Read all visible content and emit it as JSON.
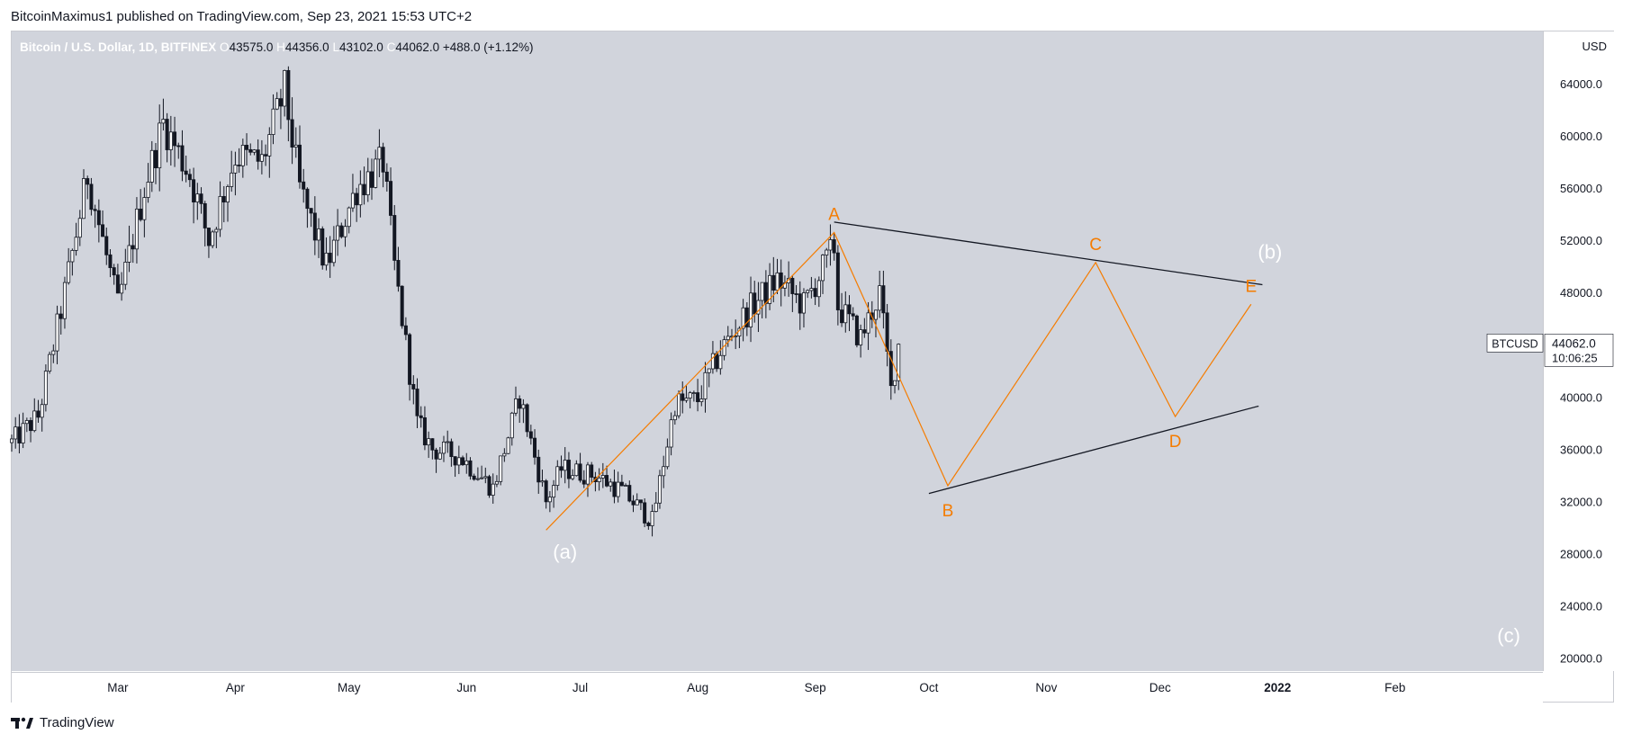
{
  "header": {
    "published_line": "BitcoinMaximus1 published on TradingView.com, Sep 23, 2021 15:53 UTC+2"
  },
  "legend": {
    "symbol": "Bitcoin / U.S. Dollar, 1D, BITFINEX",
    "open_label": "O",
    "open": "43575.0",
    "high_label": "H",
    "high": "44356.0",
    "low_label": "L",
    "low": "43102.0",
    "close_label": "C",
    "close": "44062.0",
    "change": "+488.0 (+1.12%)"
  },
  "price_tag": {
    "symbol": "BTCUSD",
    "price": "44062.0",
    "countdown": "10:06:25"
  },
  "footer": {
    "brand": "TradingView"
  },
  "colors": {
    "plot_bg": "#d1d4dc",
    "candle": "#131722",
    "wave": "#f57c00",
    "trendline": "#131722",
    "wave_label": "#f57c00",
    "major_label": "#ffffff"
  },
  "chart_data": {
    "type": "line",
    "title": "Bitcoin / U.S. Dollar, 1D, BITFINEX",
    "y_unit": "USD",
    "ylim": [
      19000,
      68000
    ],
    "y_ticks": [
      "20000.0",
      "24000.0",
      "28000.0",
      "32000.0",
      "36000.0",
      "40000.0",
      "44000.0",
      "48000.0",
      "52000.0",
      "56000.0",
      "60000.0",
      "64000.0"
    ],
    "x_ticks": [
      "Mar",
      "Apr",
      "May",
      "Jun",
      "Jul",
      "Aug",
      "Sep",
      "Oct",
      "Nov",
      "Dec",
      "2022",
      "Feb"
    ],
    "price_series": {
      "name": "BTCUSD",
      "x": [
        "2021-02-01",
        "2021-02-08",
        "2021-02-15",
        "2021-02-21",
        "2021-03-01",
        "2021-03-08",
        "2021-03-13",
        "2021-03-20",
        "2021-03-25",
        "2021-04-01",
        "2021-04-08",
        "2021-04-14",
        "2021-04-18",
        "2021-04-25",
        "2021-05-03",
        "2021-05-10",
        "2021-05-13",
        "2021-05-19",
        "2021-05-23",
        "2021-05-30",
        "2021-06-08",
        "2021-06-15",
        "2021-06-22",
        "2021-06-26",
        "2021-07-05",
        "2021-07-12",
        "2021-07-20",
        "2021-07-26",
        "2021-08-01",
        "2021-08-07",
        "2021-08-14",
        "2021-08-22",
        "2021-08-29",
        "2021-09-06",
        "2021-09-07",
        "2021-09-13",
        "2021-09-18",
        "2021-09-21",
        "2021-09-23"
      ],
      "y": [
        36500,
        38500,
        48000,
        57000,
        47000,
        56000,
        61000,
        57000,
        52000,
        58500,
        58000,
        63500,
        56000,
        50000,
        56000,
        58000,
        50000,
        38000,
        36000,
        35500,
        33000,
        40000,
        32000,
        34500,
        34000,
        32800,
        30500,
        39500,
        39800,
        43500,
        46500,
        49000,
        47000,
        51500,
        47000,
        44500,
        48000,
        40500,
        44062
      ]
    },
    "wave_count": {
      "name": "wave",
      "points": [
        {
          "label": "",
          "x": "2021-06-22",
          "y": 29800
        },
        {
          "label": "A",
          "x": "2021-09-06",
          "y": 52600
        },
        {
          "label": "B",
          "x": "2021-10-06",
          "y": 33200
        },
        {
          "label": "C",
          "x": "2021-11-14",
          "y": 50300
        },
        {
          "label": "D",
          "x": "2021-12-05",
          "y": 38500
        },
        {
          "label": "E",
          "x": "2021-12-25",
          "y": 47100
        }
      ]
    },
    "trendlines": [
      {
        "name": "upper",
        "x": [
          "2021-09-06",
          "2021-12-28"
        ],
        "y": [
          53400,
          48600
        ]
      },
      {
        "name": "lower",
        "x": [
          "2021-10-01",
          "2021-12-27"
        ],
        "y": [
          32600,
          39300
        ]
      }
    ],
    "annotations": [
      {
        "text": "(a)",
        "x": "2021-06-27",
        "y": 27600,
        "color": "#ffffff"
      },
      {
        "text": "(b)",
        "x": "2021-12-30",
        "y": 50600,
        "color": "#ffffff"
      },
      {
        "text": "(c)",
        "x": "2022-03-03",
        "y": 21200,
        "color": "#ffffff"
      }
    ]
  }
}
